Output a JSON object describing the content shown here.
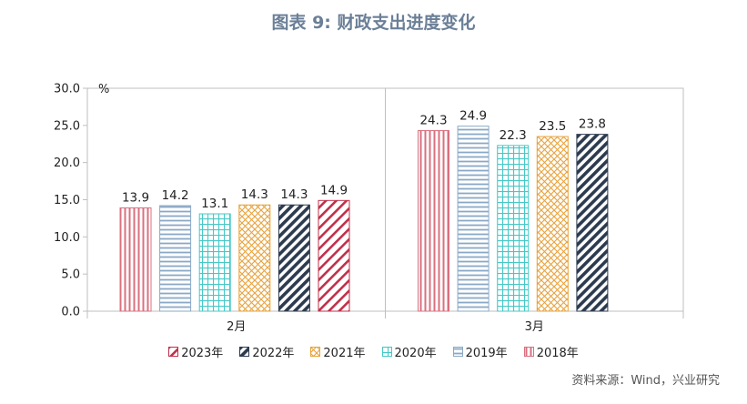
{
  "figure_title": "图表 9:  财政支出进度变化",
  "source": "资料来源：Wind，兴业研究",
  "chart_data": {
    "type": "bar",
    "categories": [
      "2月",
      "3月"
    ],
    "ylabel": "%",
    "ylim": [
      0,
      30
    ],
    "yticks": [
      "0.0",
      "5.0",
      "10.0",
      "15.0",
      "20.0",
      "25.0",
      "30.0"
    ],
    "grid": false,
    "legend_position": "bottom",
    "series": [
      {
        "name": "2023年",
        "values": [
          14.9,
          null
        ],
        "value_labels": [
          "14.9",
          ""
        ],
        "color": "#c0304a",
        "pattern": "wide-diagonal"
      },
      {
        "name": "2022年",
        "values": [
          14.3,
          23.8
        ],
        "value_labels": [
          "14.3",
          "23.8"
        ],
        "color": "#2d3b4f",
        "pattern": "dark-diagonal"
      },
      {
        "name": "2021年",
        "values": [
          14.3,
          23.5
        ],
        "value_labels": [
          "14.3",
          "23.5"
        ],
        "color": "#e8a23b",
        "pattern": "diagonal-cross"
      },
      {
        "name": "2020年",
        "values": [
          13.1,
          22.3
        ],
        "value_labels": [
          "13.1",
          "22.3"
        ],
        "color": "#45c8c6",
        "pattern": "grid"
      },
      {
        "name": "2019年",
        "values": [
          14.2,
          24.9
        ],
        "value_labels": [
          "14.2",
          "24.9"
        ],
        "color": "#8aa9c6",
        "pattern": "horizontal"
      },
      {
        "name": "2018年",
        "values": [
          13.9,
          24.3
        ],
        "value_labels": [
          "13.9",
          "24.3"
        ],
        "color": "#d9707f",
        "pattern": "vertical"
      }
    ],
    "draw_order": [
      "2018年",
      "2019年",
      "2020年",
      "2021年",
      "2022年",
      "2023年"
    ]
  }
}
